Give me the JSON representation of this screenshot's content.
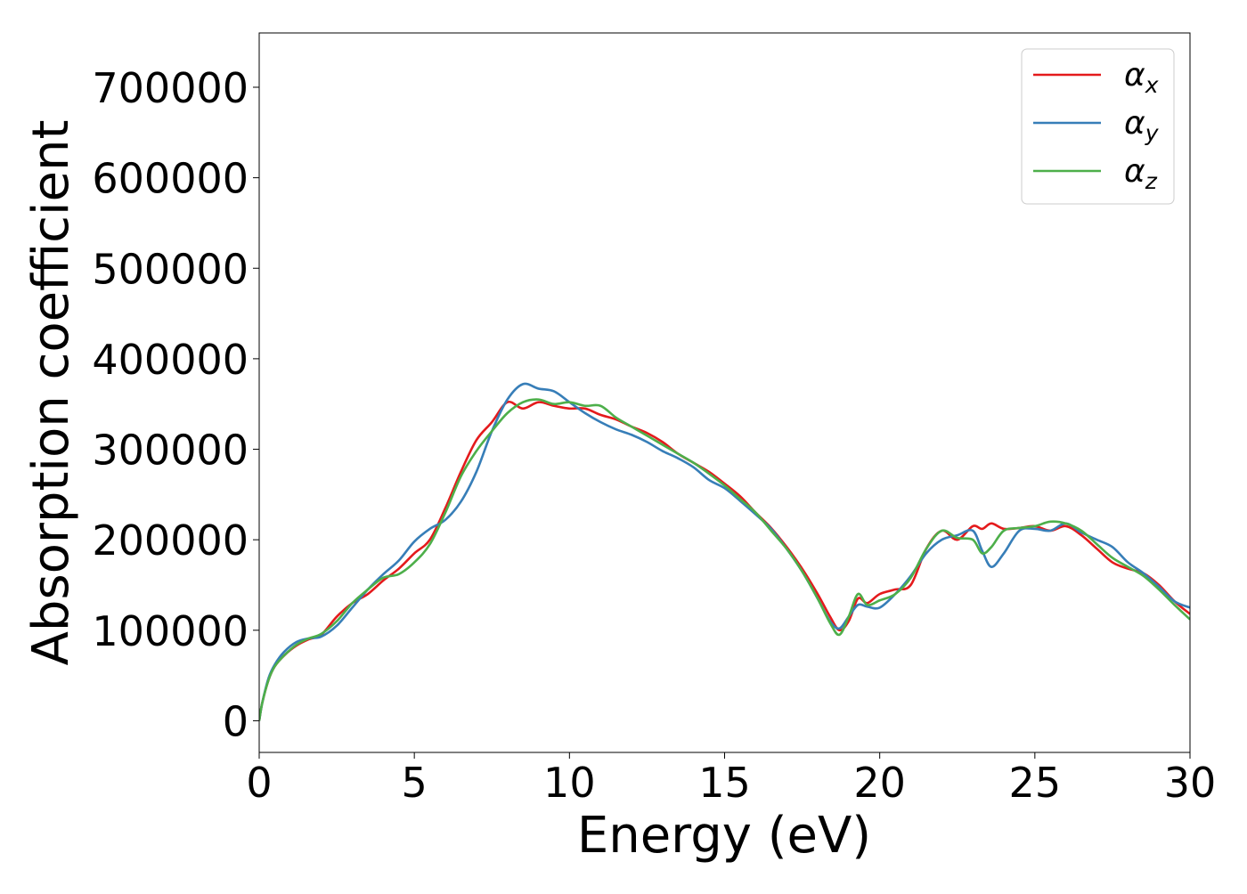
{
  "chart_data": {
    "type": "line",
    "title": "",
    "xlabel": "Energy (eV)",
    "ylabel": "Absorption coefficient",
    "xlim": [
      0,
      30
    ],
    "ylim": [
      -35000,
      760000
    ],
    "xticks": [
      0,
      5,
      10,
      15,
      20,
      25,
      30
    ],
    "yticks": [
      0,
      100000,
      200000,
      300000,
      400000,
      500000,
      600000,
      700000
    ],
    "grid": false,
    "legend": "top-right",
    "colors": {
      "alpha_x": "#e41a1c",
      "alpha_y": "#377eb8",
      "alpha_z": "#4daf4a"
    },
    "series": [
      {
        "name": "αx",
        "legend_base": "α",
        "legend_sub": "x",
        "color": "#e41a1c",
        "x": [
          0,
          0.1,
          0.3,
          0.5,
          0.8,
          1.2,
          1.6,
          2.0,
          2.5,
          3.0,
          3.5,
          4.0,
          4.5,
          5.0,
          5.5,
          6.0,
          6.5,
          7.0,
          7.5,
          8.0,
          8.5,
          9.0,
          9.5,
          10.0,
          10.5,
          11.0,
          11.5,
          12.0,
          12.5,
          13.0,
          13.5,
          14.0,
          14.5,
          15.0,
          15.5,
          16.0,
          16.5,
          17.0,
          17.5,
          18.0,
          18.4,
          18.7,
          19.0,
          19.3,
          19.6,
          20.0,
          20.5,
          21.0,
          21.5,
          22.0,
          22.5,
          23.0,
          23.3,
          23.6,
          24.0,
          24.5,
          25.0,
          25.5,
          26.0,
          26.5,
          27.0,
          27.5,
          28.0,
          28.5,
          29.0,
          29.5,
          30.0
        ],
        "y": [
          0,
          20000,
          45000,
          60000,
          72000,
          83000,
          90000,
          95000,
          115000,
          130000,
          140000,
          155000,
          168000,
          185000,
          200000,
          235000,
          275000,
          310000,
          330000,
          352000,
          345000,
          352000,
          348000,
          345000,
          345000,
          338000,
          333000,
          325000,
          318000,
          308000,
          295000,
          285000,
          275000,
          262000,
          248000,
          230000,
          213000,
          192000,
          168000,
          140000,
          115000,
          100000,
          110000,
          135000,
          130000,
          140000,
          145000,
          150000,
          190000,
          210000,
          200000,
          215000,
          212000,
          218000,
          212000,
          213000,
          215000,
          210000,
          215000,
          205000,
          190000,
          175000,
          168000,
          163000,
          150000,
          132000,
          118000
        ]
      },
      {
        "name": "αy",
        "legend_base": "α",
        "legend_sub": "y",
        "color": "#377eb8",
        "x": [
          0,
          0.1,
          0.3,
          0.5,
          0.8,
          1.2,
          1.6,
          2.0,
          2.5,
          3.0,
          3.5,
          4.0,
          4.5,
          5.0,
          5.5,
          6.0,
          6.5,
          7.0,
          7.5,
          8.0,
          8.5,
          9.0,
          9.5,
          10.0,
          10.5,
          11.0,
          11.5,
          12.0,
          12.5,
          13.0,
          13.5,
          14.0,
          14.5,
          15.0,
          15.5,
          16.0,
          16.5,
          17.0,
          17.5,
          18.0,
          18.4,
          18.7,
          19.0,
          19.3,
          19.6,
          20.0,
          20.5,
          21.0,
          21.5,
          22.0,
          22.5,
          23.0,
          23.3,
          23.6,
          24.0,
          24.5,
          25.0,
          25.5,
          26.0,
          26.5,
          27.0,
          27.5,
          28.0,
          28.5,
          29.0,
          29.5,
          30.0
        ],
        "y": [
          0,
          20000,
          47000,
          62000,
          76000,
          87000,
          91000,
          93000,
          105000,
          125000,
          145000,
          162000,
          177000,
          198000,
          212000,
          222000,
          242000,
          275000,
          320000,
          355000,
          372000,
          367000,
          364000,
          352000,
          340000,
          330000,
          322000,
          316000,
          308000,
          298000,
          290000,
          280000,
          266000,
          257000,
          243000,
          228000,
          212000,
          190000,
          165000,
          135000,
          110000,
          102000,
          115000,
          128000,
          126000,
          125000,
          140000,
          160000,
          185000,
          200000,
          205000,
          210000,
          188000,
          170000,
          185000,
          210000,
          212000,
          210000,
          218000,
          208000,
          200000,
          192000,
          175000,
          163000,
          148000,
          132000,
          125000
        ]
      },
      {
        "name": "αz",
        "legend_base": "α",
        "legend_sub": "z",
        "color": "#4daf4a",
        "x": [
          0,
          0.1,
          0.3,
          0.5,
          0.8,
          1.2,
          1.6,
          2.0,
          2.5,
          3.0,
          3.5,
          4.0,
          4.5,
          5.0,
          5.5,
          6.0,
          6.5,
          7.0,
          7.5,
          8.0,
          8.5,
          9.0,
          9.5,
          10.0,
          10.5,
          11.0,
          11.5,
          12.0,
          12.5,
          13.0,
          13.5,
          14.0,
          14.5,
          15.0,
          15.5,
          16.0,
          16.5,
          17.0,
          17.5,
          18.0,
          18.4,
          18.7,
          19.0,
          19.3,
          19.6,
          20.0,
          20.5,
          21.0,
          21.5,
          22.0,
          22.5,
          23.0,
          23.3,
          23.6,
          24.0,
          24.5,
          25.0,
          25.5,
          26.0,
          26.5,
          27.0,
          27.5,
          28.0,
          28.5,
          29.0,
          29.5,
          30.0
        ],
        "y": [
          0,
          20000,
          45000,
          60000,
          72000,
          84000,
          91000,
          96000,
          110000,
          130000,
          145000,
          158000,
          162000,
          175000,
          195000,
          230000,
          270000,
          298000,
          320000,
          340000,
          352000,
          355000,
          350000,
          352000,
          348000,
          348000,
          335000,
          325000,
          315000,
          305000,
          295000,
          285000,
          273000,
          260000,
          245000,
          230000,
          210000,
          190000,
          165000,
          135000,
          108000,
          95000,
          115000,
          140000,
          128000,
          133000,
          140000,
          158000,
          190000,
          210000,
          202000,
          200000,
          185000,
          192000,
          210000,
          213000,
          215000,
          220000,
          218000,
          210000,
          195000,
          180000,
          170000,
          160000,
          145000,
          128000,
          112000
        ]
      }
    ]
  }
}
